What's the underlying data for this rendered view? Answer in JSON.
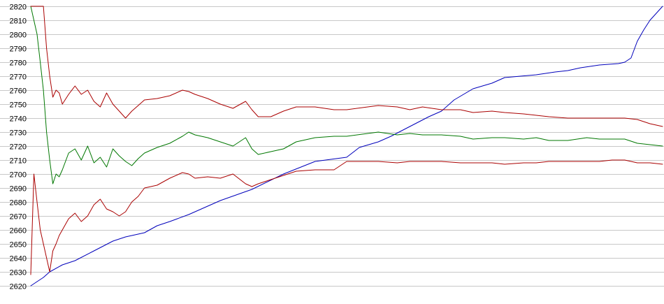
{
  "chart_data": {
    "type": "line",
    "title": "",
    "xlabel": "",
    "ylabel": "",
    "ylim": [
      2620,
      2820
    ],
    "xlim": [
      0,
      100
    ],
    "grid": true,
    "y_ticks": [
      2620,
      2630,
      2640,
      2650,
      2660,
      2670,
      2680,
      2690,
      2700,
      2710,
      2720,
      2730,
      2740,
      2750,
      2760,
      2770,
      2780,
      2790,
      2800,
      2810,
      2820
    ],
    "x_ticks_shown": false,
    "series": [
      {
        "color": "#0000bb",
        "x": [
          0,
          1,
          2,
          3,
          5,
          7,
          10,
          13,
          15,
          18,
          20,
          22,
          25,
          30,
          35,
          40,
          45,
          50,
          52,
          55,
          57,
          60,
          63,
          65,
          67,
          70,
          73,
          75,
          80,
          83,
          85,
          87,
          90,
          93,
          94,
          95,
          96,
          97,
          98,
          99,
          100
        ],
        "values": [
          2620,
          2623,
          2626,
          2630,
          2635,
          2638,
          2645,
          2652,
          2655,
          2658,
          2663,
          2666,
          2671,
          2681,
          2689,
          2700,
          2709,
          2712,
          2719,
          2723,
          2727,
          2734,
          2741,
          2745,
          2753,
          2761,
          2765,
          2769,
          2771,
          2773,
          2774,
          2776,
          2778,
          2779,
          2780,
          2783,
          2795,
          2803,
          2810,
          2815,
          2820
        ]
      },
      {
        "color": "#007700",
        "x": [
          0,
          1,
          1.5,
          2,
          2.5,
          3,
          3.5,
          4,
          4.5,
          5,
          6,
          7,
          8,
          9,
          10,
          11,
          12,
          13,
          14,
          15,
          16,
          17,
          18,
          20,
          22,
          24,
          25,
          26,
          28,
          30,
          32,
          34,
          35,
          36,
          38,
          40,
          42,
          45,
          48,
          50,
          55,
          58,
          60,
          62,
          65,
          68,
          70,
          73,
          75,
          78,
          80,
          82,
          85,
          88,
          90,
          92,
          94,
          96,
          98,
          100
        ],
        "values": [
          2820,
          2800,
          2780,
          2760,
          2730,
          2710,
          2693,
          2700,
          2698,
          2703,
          2715,
          2718,
          2710,
          2720,
          2708,
          2712,
          2705,
          2718,
          2713,
          2709,
          2706,
          2711,
          2715,
          2719,
          2722,
          2727,
          2730,
          2728,
          2726,
          2723,
          2720,
          2726,
          2718,
          2714,
          2716,
          2718,
          2723,
          2726,
          2727,
          2727,
          2730,
          2728,
          2729,
          2728,
          2728,
          2727,
          2725,
          2726,
          2726,
          2725,
          2726,
          2724,
          2724,
          2726,
          2725,
          2725,
          2725,
          2722,
          2721,
          2720
        ]
      },
      {
        "color": "#aa0000",
        "x": [
          0,
          0.5,
          1,
          1.5,
          2,
          2.5,
          3,
          3.5,
          4,
          4.5,
          5,
          6,
          7,
          8,
          9,
          10,
          11,
          12,
          13,
          14,
          15,
          16,
          17,
          18,
          20,
          22,
          24,
          25,
          26,
          28,
          30,
          32,
          34,
          35,
          36,
          38,
          40,
          42,
          45,
          48,
          50,
          55,
          58,
          60,
          62,
          65,
          68,
          70,
          73,
          75,
          78,
          80,
          82,
          85,
          88,
          90,
          92,
          94,
          96,
          98,
          100
        ],
        "values": [
          2628,
          2700,
          2680,
          2660,
          2650,
          2640,
          2630,
          2645,
          2650,
          2656,
          2660,
          2668,
          2672,
          2666,
          2670,
          2678,
          2682,
          2675,
          2673,
          2670,
          2673,
          2680,
          2684,
          2690,
          2692,
          2697,
          2701,
          2700,
          2697,
          2698,
          2697,
          2700,
          2693,
          2691,
          2693,
          2696,
          2699,
          2702,
          2703,
          2703,
          2709,
          2709,
          2708,
          2709,
          2709,
          2709,
          2708,
          2708,
          2708,
          2707,
          2708,
          2708,
          2709,
          2709,
          2709,
          2709,
          2710,
          2710,
          2708,
          2708,
          2707
        ]
      },
      {
        "color": "#aa0000",
        "x": [
          0,
          1,
          2,
          2.5,
          3,
          3.5,
          4,
          4.5,
          5,
          6,
          7,
          8,
          9,
          10,
          11,
          12,
          13,
          14,
          15,
          16,
          17,
          18,
          20,
          22,
          24,
          25,
          26,
          28,
          30,
          32,
          34,
          35,
          36,
          38,
          40,
          42,
          45,
          48,
          50,
          55,
          58,
          60,
          62,
          65,
          68,
          70,
          73,
          75,
          78,
          80,
          82,
          85,
          88,
          90,
          92,
          94,
          96,
          98,
          100
        ],
        "values": [
          2820,
          2820,
          2820,
          2790,
          2770,
          2755,
          2760,
          2758,
          2750,
          2757,
          2763,
          2757,
          2760,
          2752,
          2748,
          2758,
          2750,
          2745,
          2740,
          2745,
          2749,
          2753,
          2754,
          2756,
          2760,
          2759,
          2757,
          2754,
          2750,
          2747,
          2752,
          2746,
          2741,
          2741,
          2745,
          2748,
          2748,
          2746,
          2746,
          2749,
          2748,
          2746,
          2748,
          2746,
          2746,
          2744,
          2745,
          2744,
          2743,
          2742,
          2741,
          2740,
          2740,
          2740,
          2740,
          2740,
          2739,
          2736,
          2734
        ]
      }
    ]
  }
}
